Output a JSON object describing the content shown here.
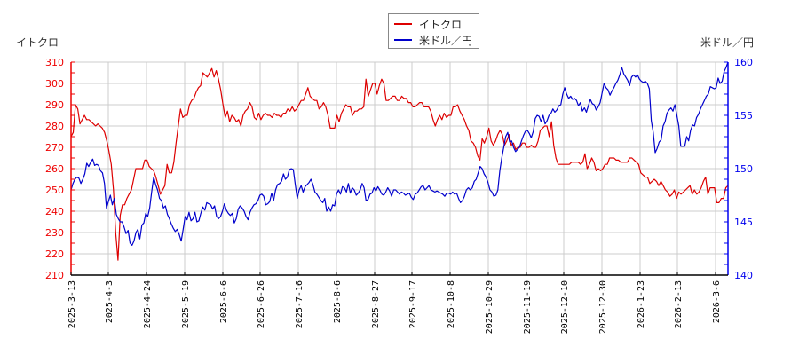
{
  "legend": {
    "items": [
      {
        "label": "イトクロ",
        "color": "#dd0000"
      },
      {
        "label": "米ドル／円",
        "color": "#0000cc"
      }
    ]
  },
  "axes": {
    "left_title": "イトクロ",
    "right_title": "米ドル／円",
    "left_color": "#ee0000",
    "right_color": "#0000ee"
  },
  "chart_data": {
    "type": "line",
    "title": "",
    "xlabel": "",
    "ylabel_left": "イトクロ",
    "ylabel_right": "米ドル／円",
    "ylim_left": [
      210,
      310
    ],
    "ylim_right": [
      140,
      160
    ],
    "yticks_left": [
      210,
      220,
      230,
      240,
      250,
      260,
      270,
      280,
      290,
      300,
      310
    ],
    "yticks_right": [
      140,
      145,
      150,
      155,
      160
    ],
    "x_tick_labels": [
      "2025-3-13",
      "2025-4-3",
      "2025-4-24",
      "2025-5-19",
      "2025-6-6",
      "2025-6-26",
      "2025-7-16",
      "2025-8-6",
      "2025-8-27",
      "2025-9-17",
      "2025-10-8",
      "2025-10-29",
      "2025-11-19",
      "2025-12-10",
      "2025-12-30",
      "2026-1-23",
      "2026-2-13",
      "2026-3-6"
    ],
    "grid": true,
    "legend_position": "top-center",
    "series": [
      {
        "name": "イトクロ",
        "axis": "left",
        "color": "#dd0000",
        "values": [
          275,
          277,
          290,
          288,
          281,
          283,
          285,
          283,
          283,
          282,
          281,
          280,
          281,
          280,
          279,
          277,
          273,
          268,
          262,
          250,
          230,
          217,
          238,
          243,
          243,
          246,
          248,
          250,
          255,
          260,
          260,
          260,
          260,
          264,
          264,
          261,
          260,
          259,
          256,
          252,
          248,
          250,
          252,
          262,
          258,
          258,
          263,
          272,
          280,
          288,
          284,
          285,
          285,
          290,
          292,
          293,
          296,
          298,
          299,
          305,
          304,
          303,
          305,
          307,
          303,
          306,
          302,
          297,
          290,
          284,
          287,
          282,
          285,
          284,
          282,
          283,
          280,
          285,
          287,
          288,
          291,
          289,
          284,
          283,
          286,
          283,
          285,
          286,
          285,
          285,
          284,
          286,
          285,
          285,
          284,
          286,
          286,
          288,
          287,
          289,
          287,
          288,
          290,
          292,
          292,
          295,
          298,
          294,
          293,
          292,
          292,
          288,
          289,
          291,
          289,
          285,
          279,
          279,
          279,
          285,
          282,
          286,
          288,
          290,
          289,
          289,
          285,
          287,
          287,
          288,
          288,
          289,
          302,
          294,
          297,
          300,
          300,
          295,
          299,
          302,
          300,
          292,
          292,
          293,
          294,
          294,
          292,
          292,
          294,
          293,
          293,
          291,
          291,
          289,
          289,
          290,
          291,
          291,
          289,
          289,
          289,
          287,
          283,
          280,
          283,
          285,
          283,
          286,
          284,
          285,
          285,
          289,
          289,
          290,
          287,
          285,
          283,
          280,
          278,
          273,
          272,
          270,
          266,
          264,
          274,
          272,
          275,
          279,
          273,
          271,
          273,
          276,
          278,
          276,
          271,
          273,
          276,
          271,
          272,
          269,
          270,
          270,
          272,
          272,
          270,
          270,
          271,
          270,
          270,
          273,
          278,
          279,
          280,
          280,
          275,
          282,
          271,
          265,
          262,
          262,
          262,
          262,
          262,
          262,
          263,
          263,
          263,
          263,
          262,
          263,
          267,
          260,
          262,
          265,
          263,
          259,
          260,
          259,
          260,
          262,
          262,
          265,
          265,
          265,
          264,
          264,
          263,
          263,
          263,
          263,
          265,
          265,
          264,
          263,
          262,
          258,
          257,
          256,
          256,
          253,
          254,
          255,
          254,
          252,
          254,
          252,
          250,
          249,
          247,
          248,
          250,
          246,
          249,
          248,
          249,
          250,
          251,
          252,
          248,
          250,
          248,
          249,
          251,
          254,
          256,
          248,
          251,
          251,
          251,
          244,
          244,
          246,
          246,
          251,
          252
        ]
      },
      {
        "name": "米ドル／円",
        "axis": "right",
        "color": "#0000cc",
        "values": [
          148.0,
          148.6,
          149.0,
          149.2,
          149.1,
          148.6,
          149.0,
          149.5,
          150.5,
          150.2,
          150.6,
          150.9,
          150.3,
          150.4,
          150.3,
          149.8,
          149.6,
          148.6,
          146.3,
          146.9,
          147.5,
          146.6,
          147.2,
          145.7,
          145.3,
          145.0,
          145.0,
          144.5,
          143.9,
          144.2,
          143.0,
          142.8,
          143.2,
          144.0,
          144.3,
          143.4,
          144.7,
          144.9,
          145.8,
          145.5,
          146.3,
          147.8,
          149.2,
          148.5,
          148.0,
          147.2,
          147.0,
          146.3,
          146.5,
          145.7,
          145.3,
          144.8,
          144.4,
          144.1,
          144.3,
          143.8,
          143.2,
          144.3,
          145.5,
          145.2,
          145.9,
          145.1,
          145.3,
          145.9,
          145.0,
          145.1,
          145.8,
          146.4,
          146.1,
          146.8,
          146.7,
          146.6,
          146.2,
          146.5,
          145.5,
          145.3,
          145.5,
          146.0,
          146.7,
          146.1,
          145.8,
          145.6,
          145.8,
          144.9,
          145.3,
          146.2,
          146.5,
          146.3,
          146.0,
          145.5,
          145.2,
          145.9,
          146.3,
          146.6,
          146.7,
          147.0,
          147.5,
          147.6,
          147.4,
          146.6,
          146.7,
          146.9,
          147.7,
          147.0,
          148.0,
          148.5,
          148.6,
          148.8,
          149.5,
          149.0,
          149.2,
          149.9,
          150.0,
          149.9,
          148.5,
          147.2,
          148.0,
          148.4,
          147.8,
          148.3,
          148.5,
          148.7,
          149.0,
          148.5,
          147.8,
          147.6,
          147.3,
          147.0,
          146.8,
          147.2,
          146.0,
          146.4,
          146.0,
          146.6,
          146.5,
          147.6,
          148.0,
          147.6,
          148.3,
          148.2,
          147.8,
          148.6,
          147.7,
          148.2,
          148.0,
          147.5,
          147.7,
          148.0,
          148.6,
          148.2,
          147.0,
          147.1,
          147.6,
          147.7,
          148.2,
          147.9,
          148.3,
          148.0,
          147.6,
          147.5,
          147.8,
          148.2,
          147.9,
          147.4,
          148.0,
          148.0,
          147.8,
          147.6,
          147.8,
          147.7,
          147.5,
          147.6,
          147.7,
          147.3,
          147.1,
          147.6,
          147.7,
          148.0,
          148.3,
          148.4,
          148.0,
          148.2,
          148.4,
          148.0,
          147.9,
          147.8,
          147.9,
          147.8,
          147.7,
          147.6,
          147.4,
          147.7,
          147.7,
          147.6,
          147.8,
          147.6,
          147.7,
          147.2,
          146.8,
          147.0,
          147.4,
          148.0,
          148.2,
          148.0,
          148.2,
          148.8,
          149.0,
          149.6,
          150.2,
          150.0,
          149.5,
          149.2,
          148.7,
          148.0,
          147.8,
          147.4,
          147.5,
          148.0,
          149.8,
          151.0,
          152.0,
          153.0,
          153.4,
          152.5,
          152.6,
          152.0,
          151.6,
          151.8,
          152.0,
          152.6,
          153.1,
          153.5,
          153.6,
          153.3,
          152.9,
          153.5,
          154.7,
          155.0,
          154.9,
          154.4,
          155.0,
          154.2,
          154.5,
          155.0,
          155.2,
          155.6,
          155.3,
          155.5,
          155.9,
          156.0,
          157.0,
          157.6,
          157.0,
          156.6,
          156.8,
          156.5,
          156.6,
          156.4,
          155.9,
          156.2,
          155.4,
          155.7,
          155.3,
          155.9,
          156.5,
          156.1,
          156.0,
          155.5,
          155.8,
          156.2,
          157.1,
          158.0,
          157.6,
          157.4,
          156.9,
          157.3,
          157.6,
          158.0,
          158.3,
          158.8,
          159.5,
          158.9,
          158.6,
          158.3,
          157.8,
          158.6,
          158.8,
          158.6,
          158.8,
          158.4,
          158.2,
          158.1,
          158.2,
          158.0,
          157.5,
          154.5,
          153.4,
          151.5,
          151.9,
          152.5,
          152.7,
          154.0,
          154.4,
          155.2,
          155.5,
          155.7,
          155.4,
          156.0,
          155.0,
          154.0,
          152.1,
          152.1,
          152.1,
          153.0,
          152.6,
          153.6,
          154.1,
          154.0,
          154.8,
          155.1,
          155.6,
          156.0,
          156.4,
          156.8,
          157.0,
          157.7,
          157.6,
          157.5,
          157.6,
          158.5,
          158.0,
          158.2,
          159.1,
          159.5,
          160.0
        ]
      }
    ]
  }
}
